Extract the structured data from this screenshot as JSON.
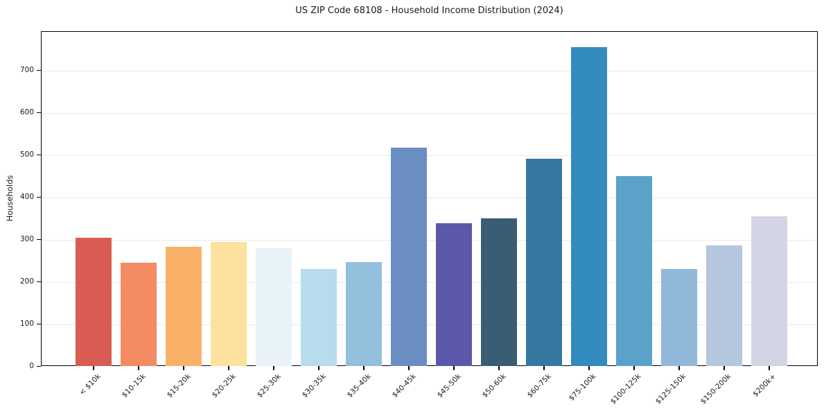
{
  "figure": {
    "title": "US ZIP Code 68108 - Household Income Distribution (2024)",
    "background_color": "#ffffff"
  },
  "chart_data": {
    "type": "bar",
    "title": "US ZIP Code 68108 - Household Income Distribution (2024)",
    "xlabel": "",
    "ylabel": "Households",
    "categories": [
      "< $10k",
      "$10-15k",
      "$15-20k",
      "$20-25k",
      "$25-30k",
      "$30-35k",
      "$35-40k",
      "$40-45k",
      "$45-50k",
      "$50-60k",
      "$60-75k",
      "$75-100k",
      "$100-125k",
      "$125-150k",
      "$150-200k",
      "$200k+"
    ],
    "values": [
      303,
      244,
      282,
      293,
      278,
      229,
      246,
      516,
      338,
      349,
      491,
      755,
      449,
      229,
      285,
      355
    ],
    "bar_colors": [
      "#d85c52",
      "#f58b63",
      "#f9b169",
      "#fce29e",
      "#e7f3f8",
      "#b7dcec",
      "#92c0dd",
      "#6a8ec2",
      "#5b58aa",
      "#395e74",
      "#3578a1",
      "#338abf",
      "#5ba2ca",
      "#90b8d9",
      "#b5c6df",
      "#d3d5e4"
    ],
    "ylim": [
      0,
      792
    ],
    "yticks": [
      0,
      100,
      200,
      300,
      400,
      500,
      600,
      700
    ],
    "grid": "horizontal",
    "grid_color": "#e9e9e9",
    "axis_color": "#000000",
    "text_color": "#1a1a1a",
    "x_tick_rotation_deg": 45,
    "legend": "none"
  }
}
